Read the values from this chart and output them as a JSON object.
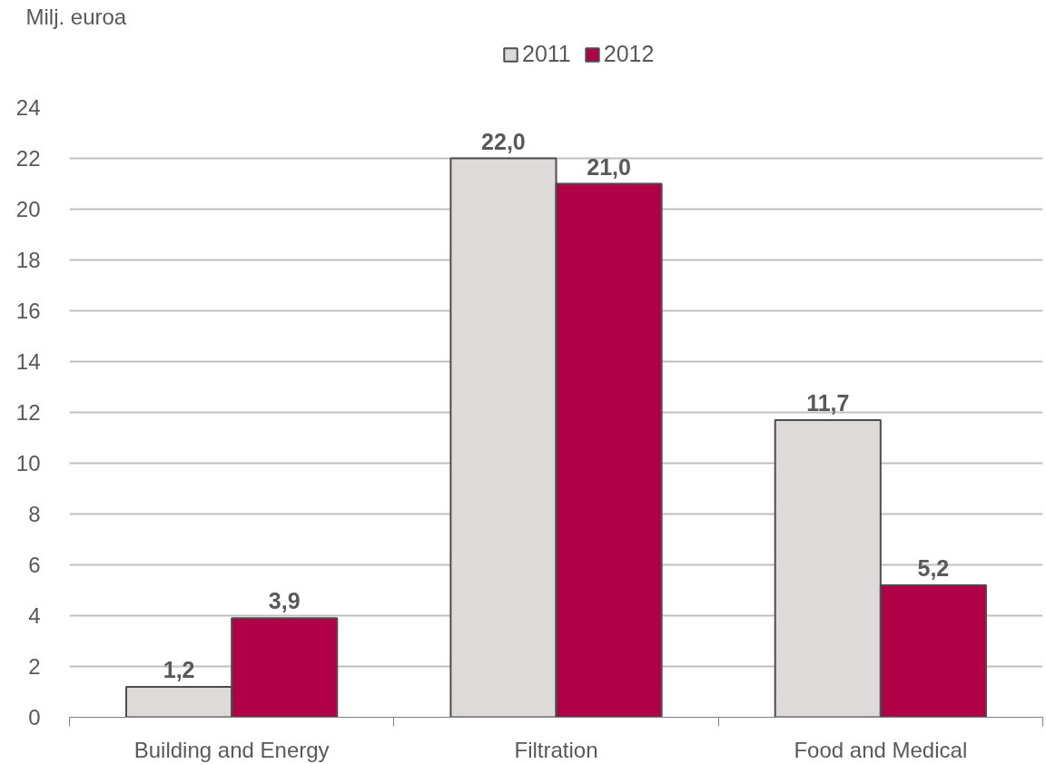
{
  "chart_data": {
    "type": "bar",
    "ylabel": "Milj. euroa",
    "categories": [
      "Building and Energy",
      "Filtration",
      "Food and Medical"
    ],
    "series": [
      {
        "name": "2011",
        "color": "#dedada",
        "values": [
          1.2,
          22.0,
          11.7
        ],
        "value_labels": [
          "1,2",
          "22,0",
          "11,7"
        ]
      },
      {
        "name": "2012",
        "color": "#b00046",
        "values": [
          3.9,
          21.0,
          5.2
        ],
        "value_labels": [
          "3,9",
          "21,0",
          "5,2"
        ]
      }
    ],
    "ylim": [
      0,
      24
    ],
    "yticks": [
      0,
      2,
      4,
      6,
      8,
      10,
      12,
      14,
      16,
      18,
      20,
      22,
      24
    ],
    "grid": "y",
    "legend": "top"
  }
}
